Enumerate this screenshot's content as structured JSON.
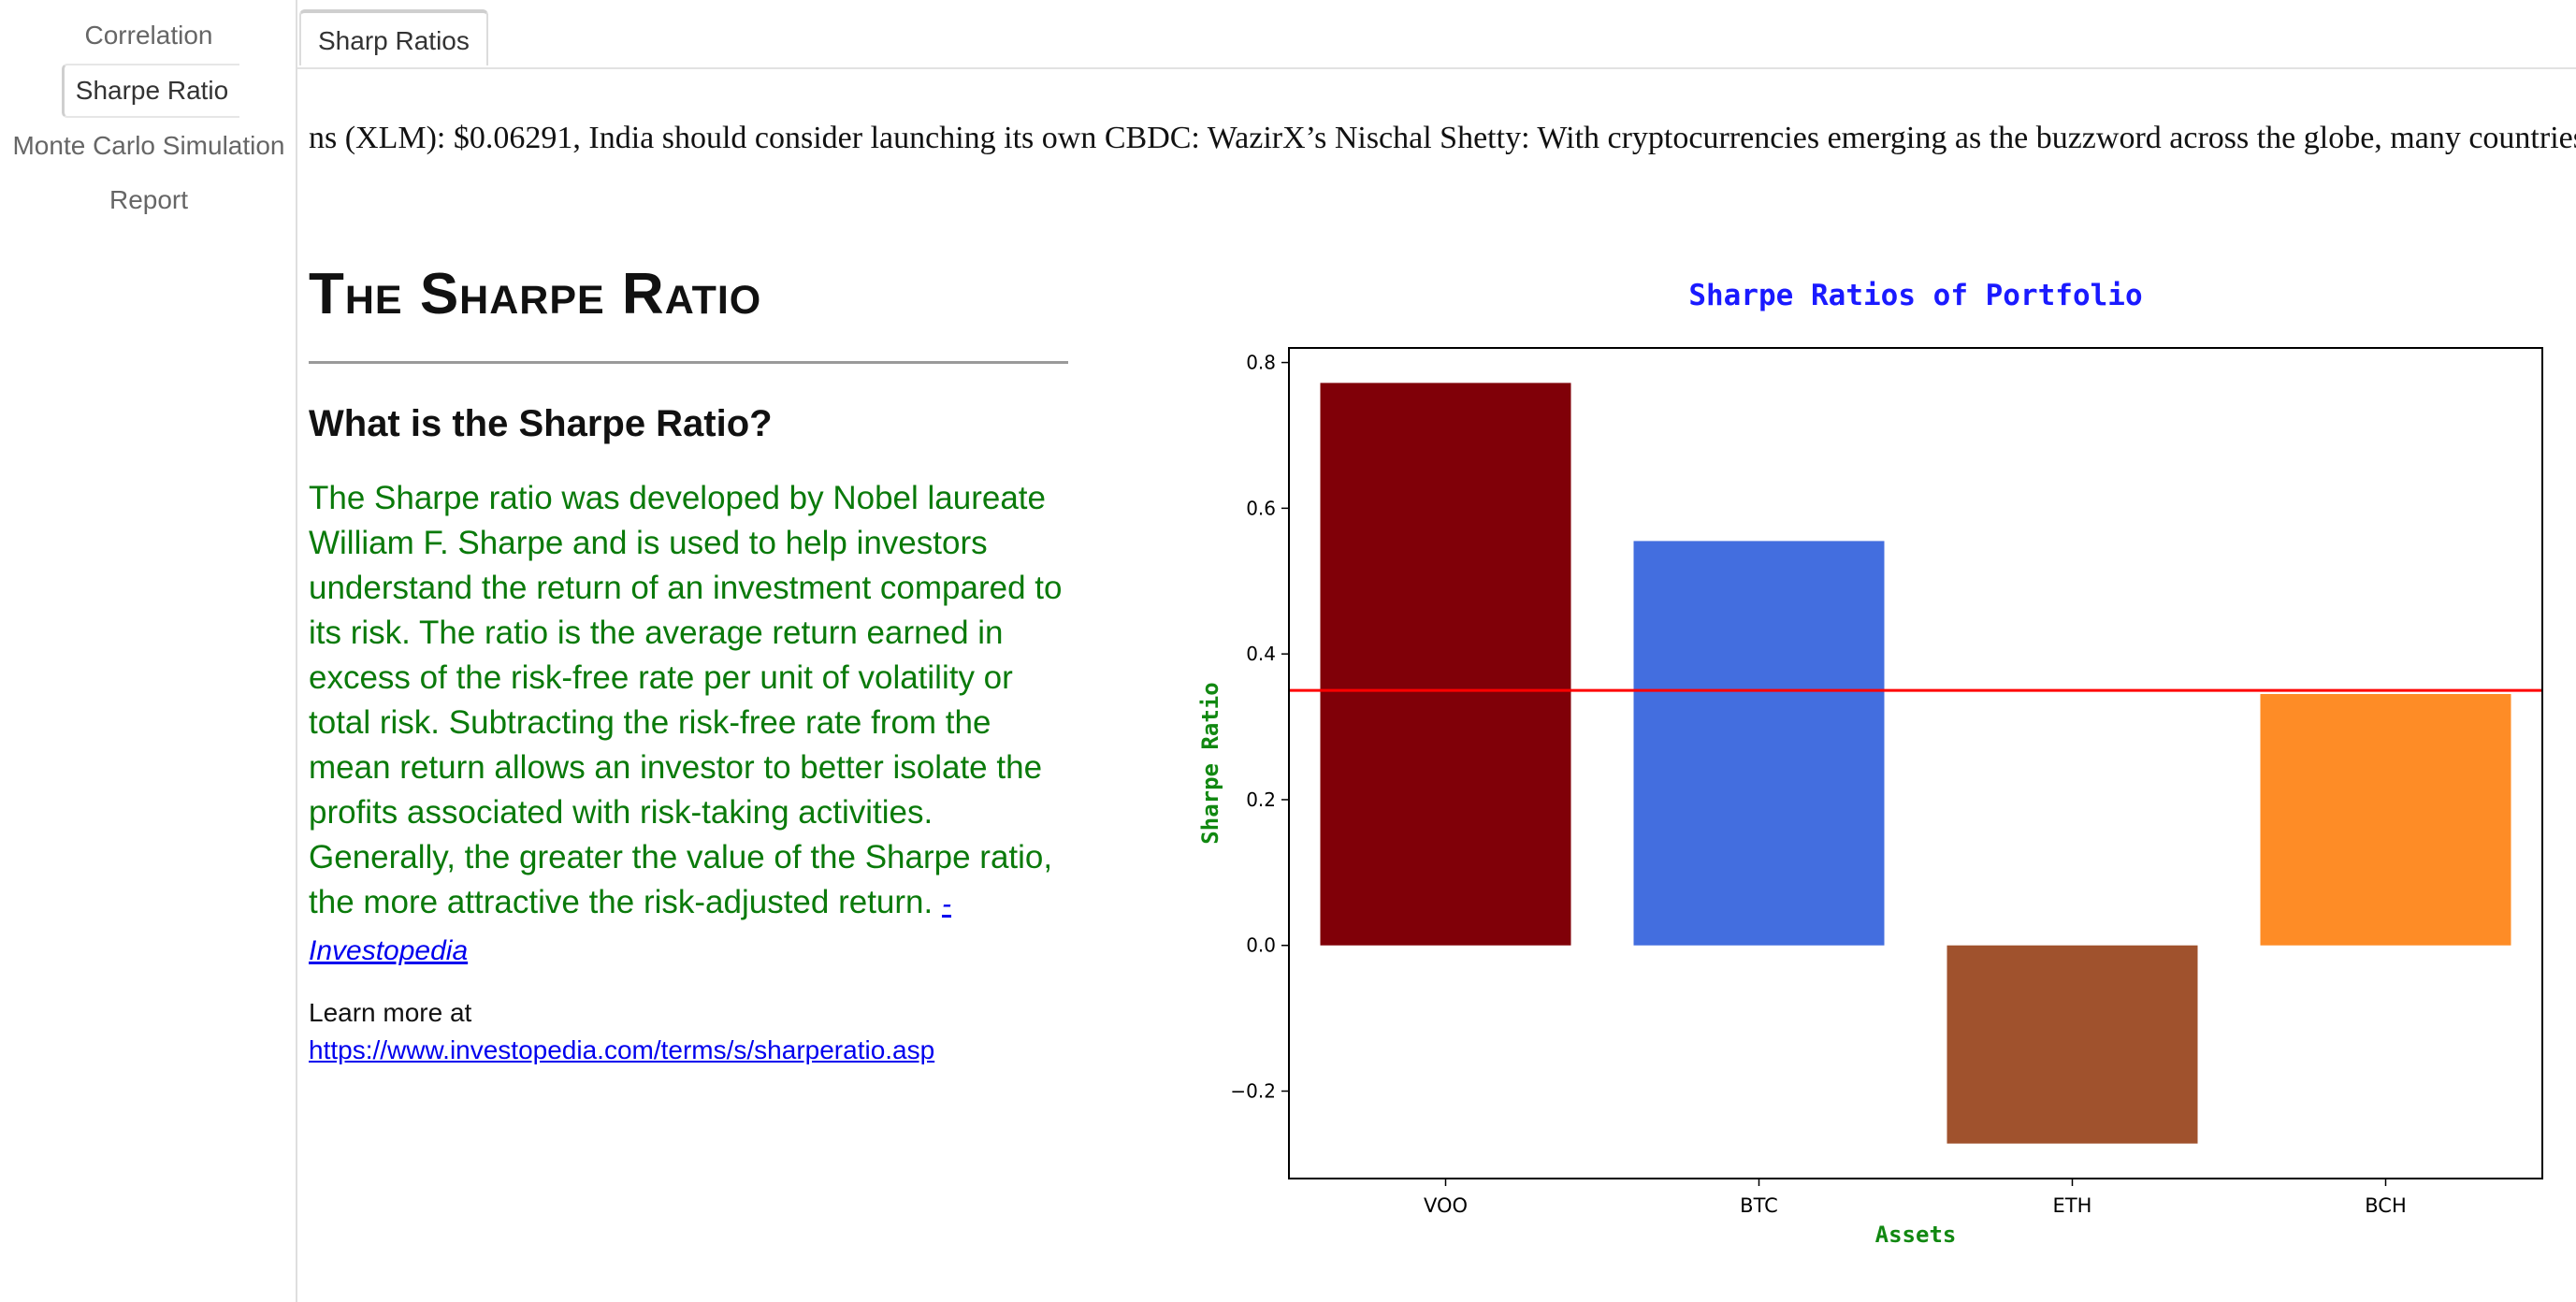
{
  "sidebar": {
    "items": [
      {
        "label": "Correlation"
      },
      {
        "label": "Sharpe Ratio"
      },
      {
        "label": "Monte Carlo Simulation"
      },
      {
        "label": "Report"
      }
    ]
  },
  "tabs": [
    {
      "label": "Sharp Ratios"
    }
  ],
  "ticker": {
    "text": "ns (XLM): $0.06291,  India should consider launching its own CBDC: WazirX’s Nischal Shetty: With cryptocurrencies emerging as the buzzword across the globe, many countries"
  },
  "main": {
    "title": "The Sharpe Ratio",
    "heading": "What is the Sharpe Ratio?",
    "paragraph": "The Sharpe ratio was developed by Nobel laureate William F. Sharpe and is used to help investors understand the return of an investment compared to its risk. The ratio is the average return earned in excess of the risk-free rate per unit of volatility or total risk. Subtracting the risk-free rate from the mean return allows an investor to better isolate the profits associated with risk-taking activities. Generally, the greater the value of the Sharpe ratio, the more attractive the risk-adjusted return.",
    "source_link": "- Investopedia",
    "learn_more_prefix": "Learn more at",
    "learn_more_url": "https://www.investopedia.com/terms/s/sharperatio.asp"
  },
  "chart_data": {
    "type": "bar",
    "title": "Sharpe Ratios of Portfolio",
    "xlabel": "Assets",
    "ylabel": "Sharpe Ratio",
    "categories": [
      "VOO",
      "BTC",
      "ETH",
      "BCH"
    ],
    "values": [
      0.772,
      0.555,
      -0.272,
      0.345
    ],
    "colors": [
      "#800008",
      "#436edf",
      "#a0522d",
      "#fe8c26"
    ],
    "ylim": [
      -0.32,
      0.82
    ],
    "yticks": [
      -0.2,
      0.0,
      0.2,
      0.4,
      0.6,
      0.8
    ],
    "ytick_labels": [
      "−0.2",
      "0.0",
      "0.2",
      "0.4",
      "0.6",
      "0.8"
    ],
    "reference_line": 0.35,
    "reference_color": "#ff0000",
    "title_color": "#1a1aff",
    "label_color": "#118811"
  }
}
